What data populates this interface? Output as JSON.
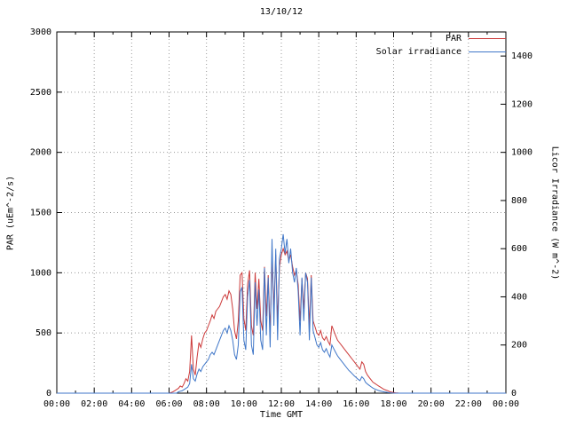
{
  "chart_data": {
    "type": "line",
    "title": "13/10/12",
    "xlabel": "Time GMT",
    "ylabel_left": "PAR (uEm^-2/s)",
    "ylabel_right": "Licor Irradiance (W m^-2)",
    "xlim": [
      0,
      24
    ],
    "ylim_left": [
      0,
      3000
    ],
    "ylim_right": [
      0,
      1500
    ],
    "grid": true,
    "legend_position": "top-right",
    "x_tick_hours": [
      0,
      2,
      4,
      6,
      8,
      10,
      12,
      14,
      16,
      18,
      20,
      22,
      24
    ],
    "x_tick_labels": [
      "00:00",
      "02:00",
      "04:00",
      "06:00",
      "08:00",
      "10:00",
      "12:00",
      "14:00",
      "16:00",
      "18:00",
      "20:00",
      "22:00",
      "00:00"
    ],
    "x_minor_hours": [
      1,
      3,
      5,
      7,
      9,
      11,
      13,
      15,
      17,
      19,
      21,
      23
    ],
    "y_left_ticks": [
      0,
      500,
      1000,
      1500,
      2000,
      2500,
      3000
    ],
    "y_left_labels": [
      "0",
      "500",
      "1000",
      "1500",
      "2000",
      "2500",
      "3000"
    ],
    "y_right_ticks": [
      0,
      200,
      400,
      600,
      800,
      1000,
      1200,
      1400
    ],
    "y_right_labels": [
      "0",
      "200",
      "400",
      "600",
      "800",
      "1000",
      "1200",
      "1400"
    ],
    "grid_color": "#999999",
    "border_color": "#000000",
    "series": [
      {
        "name": "PAR",
        "color": "#cc3939",
        "axis": "left",
        "x0": 6.0,
        "dx": 0.1,
        "pre": [
          [
            0,
            0
          ],
          [
            5.9,
            0
          ]
        ],
        "post": [
          [
            24,
            0
          ]
        ],
        "values": [
          0,
          5,
          10,
          20,
          30,
          40,
          60,
          50,
          80,
          120,
          100,
          180,
          480,
          200,
          150,
          300,
          420,
          380,
          450,
          500,
          520,
          560,
          600,
          650,
          620,
          680,
          700,
          720,
          760,
          800,
          820,
          780,
          850,
          820,
          700,
          520,
          450,
          600,
          980,
          1000,
          620,
          520,
          900,
          1020,
          560,
          480,
          1000,
          700,
          950,
          600,
          520,
          1050,
          640,
          980,
          520,
          1100,
          700,
          1150,
          600,
          1050,
          1150,
          1200,
          1150,
          1180,
          1100,
          1150,
          1050,
          980,
          1020,
          900,
          600,
          950,
          700,
          1000,
          950,
          560,
          980,
          600,
          550,
          500,
          480,
          520,
          460,
          440,
          470,
          430,
          400,
          560,
          520,
          480,
          440,
          420,
          400,
          380,
          360,
          340,
          320,
          300,
          280,
          260,
          240,
          220,
          200,
          260,
          240,
          180,
          150,
          130,
          110,
          90,
          80,
          70,
          60,
          50,
          40,
          30,
          25,
          20,
          12,
          8,
          5,
          3,
          2,
          0,
          0
        ]
      },
      {
        "name": "Solar irradiance",
        "color": "#3f76c8",
        "axis": "right",
        "x0": 6.0,
        "dx": 0.1,
        "pre": [
          [
            0,
            0
          ],
          [
            5.9,
            0
          ]
        ],
        "post": [
          [
            24,
            0
          ]
        ],
        "values": [
          0,
          0,
          0,
          0,
          0,
          5,
          8,
          10,
          15,
          20,
          25,
          40,
          120,
          60,
          50,
          80,
          100,
          90,
          110,
          120,
          130,
          140,
          160,
          170,
          160,
          180,
          200,
          220,
          240,
          260,
          270,
          250,
          280,
          260,
          220,
          160,
          140,
          200,
          420,
          440,
          220,
          180,
          400,
          470,
          200,
          160,
          460,
          280,
          430,
          220,
          180,
          520,
          240,
          480,
          190,
          640,
          280,
          600,
          220,
          560,
          600,
          660,
          580,
          640,
          540,
          600,
          500,
          460,
          520,
          420,
          240,
          480,
          300,
          500,
          460,
          220,
          480,
          260,
          230,
          200,
          190,
          210,
          180,
          170,
          185,
          165,
          150,
          200,
          185,
          170,
          155,
          145,
          135,
          125,
          115,
          105,
          95,
          88,
          80,
          72,
          65,
          58,
          52,
          68,
          60,
          45,
          38,
          32,
          26,
          21,
          17,
          14,
          11,
          9,
          7,
          5,
          4,
          3,
          2,
          1,
          0,
          0,
          0,
          0,
          0
        ]
      }
    ]
  }
}
